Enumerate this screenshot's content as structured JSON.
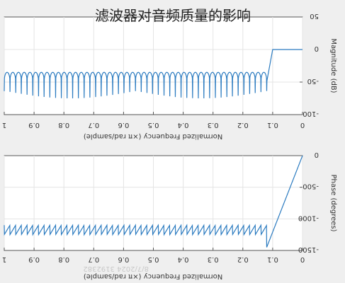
{
  "title": "滤波器对音频质量的影响",
  "watermark": "8/7/2024 3192382",
  "colors": {
    "line": "#2b7bc0",
    "axis": "#555555",
    "grid": "#e4e4e4",
    "panel_bg": "#ffffff",
    "page_bg": "#efefef"
  },
  "chart_data": [
    {
      "type": "line",
      "subplot": "top",
      "xlabel": "Normalized Frequency  (×π rad/sample)",
      "ylabel": "Magnitude (dB)",
      "x_ticks": [
        "0",
        "0.1",
        "0.2",
        "0.3",
        "0.4",
        "0.5",
        "0.6",
        "0.7",
        "0.8",
        "0.9",
        "1"
      ],
      "y_ticks": [
        "50",
        "0",
        "-50",
        "-100"
      ],
      "xlim": [
        0,
        1
      ],
      "ylim": [
        -100,
        50
      ],
      "x_reversed": true,
      "grid": true,
      "series": [
        {
          "shape": "passband-then-stopband-ripple",
          "passband_level_db": 0,
          "passband_edge": 0.1,
          "stopband_start": 0.12,
          "stopband_peak_db": -35,
          "stopband_base_db": -50,
          "stopband_null_db": -75,
          "stopband_lobes": 46
        }
      ]
    },
    {
      "type": "line",
      "subplot": "bottom",
      "xlabel": "Normalized Frequency  (×π rad/sample)",
      "ylabel": "Phase (degrees)",
      "x_ticks": [
        "0",
        "0.1",
        "0.2",
        "0.3",
        "0.4",
        "0.5",
        "0.6",
        "0.7",
        "0.8",
        "0.9",
        "1"
      ],
      "y_ticks": [
        "0",
        "-500",
        "-1000",
        "-1500"
      ],
      "xlim": [
        0,
        1
      ],
      "ylim": [
        -1500,
        0
      ],
      "x_reversed": true,
      "grid": true,
      "series": [
        {
          "shape": "linear-then-sawtooth",
          "start_phase_deg": 0,
          "min_phase_deg": -1450,
          "linear_end": 0.12,
          "sawtooth_high_deg": -1100,
          "sawtooth_low_deg": -1250,
          "sawtooth_teeth": 46
        }
      ]
    }
  ]
}
